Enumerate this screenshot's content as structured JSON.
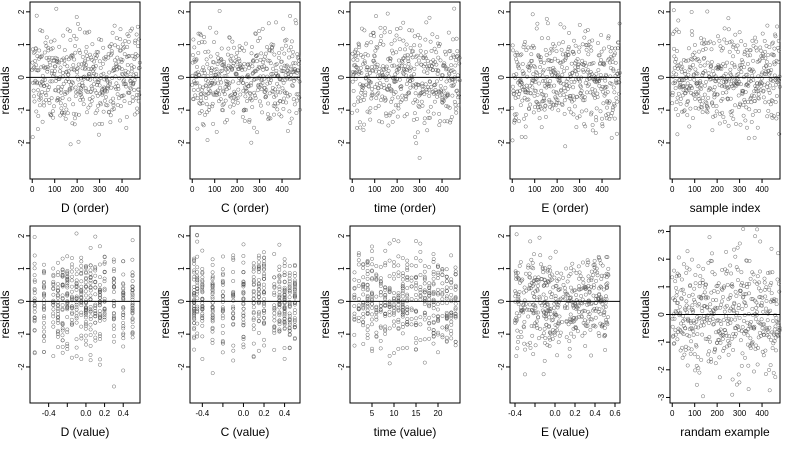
{
  "chart_data": [
    {
      "type": "scatter",
      "xlabel": "D (order)",
      "ylabel": "residuals",
      "xlim": [
        -10,
        480
      ],
      "ylim": [
        -3.1,
        2.3
      ],
      "xticks": [
        0,
        100,
        200,
        300,
        400
      ],
      "yticks": [
        2,
        1,
        0,
        -1,
        -2
      ],
      "hline": 0,
      "n": 480,
      "pattern": "index",
      "series": [
        {
          "y_range": [
            -2.7,
            2.1
          ]
        }
      ]
    },
    {
      "type": "scatter",
      "xlabel": "C (order)",
      "ylabel": "residuals",
      "xlim": [
        -10,
        480
      ],
      "ylim": [
        -3.1,
        2.3
      ],
      "xticks": [
        0,
        100,
        200,
        300,
        400
      ],
      "yticks": [
        2,
        1,
        0,
        -1,
        -2
      ],
      "hline": 0,
      "n": 480,
      "pattern": "index",
      "series": [
        {
          "y_range": [
            -2.7,
            2.1
          ]
        }
      ]
    },
    {
      "type": "scatter",
      "xlabel": "time (order)",
      "ylabel": "residuals",
      "xlim": [
        -10,
        480
      ],
      "ylim": [
        -3.1,
        2.3
      ],
      "xticks": [
        0,
        100,
        200,
        300,
        400
      ],
      "yticks": [
        2,
        1,
        0,
        -1,
        -2
      ],
      "hline": 0,
      "n": 480,
      "pattern": "index",
      "series": [
        {
          "y_range": [
            -2.7,
            2.1
          ]
        }
      ]
    },
    {
      "type": "scatter",
      "xlabel": "E (order)",
      "ylabel": "residuals",
      "xlim": [
        -10,
        480
      ],
      "ylim": [
        -3.1,
        2.3
      ],
      "xticks": [
        0,
        100,
        200,
        300,
        400
      ],
      "yticks": [
        2,
        1,
        0,
        -1,
        -2
      ],
      "hline": 0,
      "n": 480,
      "pattern": "index",
      "series": [
        {
          "y_range": [
            -2.7,
            2.1
          ]
        }
      ]
    },
    {
      "type": "scatter",
      "xlabel": "sample index",
      "ylabel": "residuals",
      "xlim": [
        -10,
        480
      ],
      "ylim": [
        -3.1,
        2.3
      ],
      "xticks": [
        0,
        100,
        200,
        300,
        400
      ],
      "yticks": [
        2,
        1,
        0,
        -1,
        -2
      ],
      "hline": 0,
      "n": 480,
      "pattern": "index",
      "series": [
        {
          "y_range": [
            -2.7,
            2.1
          ]
        }
      ]
    },
    {
      "type": "scatter",
      "xlabel": "D (value)",
      "ylabel": "residuals",
      "xlim": [
        -0.6,
        0.58
      ],
      "ylim": [
        -3.1,
        2.3
      ],
      "xticks": [
        -0.4,
        -0.2,
        0.0,
        0.2,
        0.4
      ],
      "xticklabels": [
        "-0.4",
        "",
        "0.0",
        "0.2",
        "0.4"
      ],
      "yticks": [
        2,
        1,
        0,
        -1,
        -2
      ],
      "hline": 0,
      "n": 480,
      "pattern": "columns",
      "x_levels": [
        -0.55,
        -0.45,
        -0.35,
        -0.3,
        -0.25,
        -0.2,
        -0.15,
        -0.1,
        -0.05,
        0.0,
        0.05,
        0.1,
        0.15,
        0.2,
        0.3,
        0.4,
        0.5
      ],
      "series": [
        {
          "y_range": [
            -2.7,
            2.1
          ]
        }
      ]
    },
    {
      "type": "scatter",
      "xlabel": "C (value)",
      "ylabel": "residuals",
      "xlim": [
        -0.52,
        0.55
      ],
      "ylim": [
        -3.1,
        2.3
      ],
      "xticks": [
        -0.4,
        -0.2,
        0.0,
        0.2,
        0.4
      ],
      "xticklabels": [
        "-0.4",
        "",
        "0.0",
        "0.2",
        "0.4"
      ],
      "yticks": [
        2,
        1,
        0,
        -1,
        -2
      ],
      "hline": 0,
      "n": 480,
      "pattern": "columns",
      "x_levels": [
        -0.48,
        -0.45,
        -0.4,
        -0.3,
        -0.2,
        -0.1,
        0.0,
        0.1,
        0.15,
        0.2,
        0.3,
        0.35,
        0.4,
        0.45,
        0.5
      ],
      "series": [
        {
          "y_range": [
            -2.7,
            2.1
          ]
        }
      ]
    },
    {
      "type": "scatter",
      "xlabel": "time (value)",
      "ylabel": "residuals",
      "xlim": [
        0,
        25
      ],
      "ylim": [
        -3.1,
        2.3
      ],
      "xticks": [
        5,
        10,
        15,
        20
      ],
      "yticks": [
        2,
        1,
        0,
        -1,
        -2
      ],
      "hline": 0,
      "n": 480,
      "pattern": "columns",
      "x_levels": [
        1,
        2,
        3,
        4,
        5,
        6,
        7,
        8,
        9,
        10,
        11,
        12,
        13,
        14,
        15,
        16,
        17,
        18,
        19,
        20,
        21,
        22,
        23,
        24
      ],
      "series": [
        {
          "y_range": [
            -2.7,
            2.1
          ]
        }
      ]
    },
    {
      "type": "scatter",
      "xlabel": "E (value)",
      "ylabel": "residuals",
      "xlim": [
        -0.45,
        0.65
      ],
      "ylim": [
        -3.1,
        2.3
      ],
      "xticks": [
        -0.4,
        -0.2,
        0.0,
        0.2,
        0.4,
        0.6
      ],
      "xticklabels": [
        "-0.4",
        "",
        "0.0",
        "0.2",
        "0.4",
        "0.6"
      ],
      "yticks": [
        2,
        1,
        0,
        -1,
        -2
      ],
      "hline": 0,
      "n": 480,
      "pattern": "continuous",
      "x_range": [
        -0.4,
        0.55
      ],
      "series": [
        {
          "y_range": [
            -2.7,
            2.1
          ]
        }
      ]
    },
    {
      "type": "scatter",
      "xlabel": "randam example",
      "ylabel": "residuals",
      "xlim": [
        -10,
        480
      ],
      "ylim": [
        -3.2,
        3.2
      ],
      "xticks": [
        0,
        100,
        200,
        300,
        400
      ],
      "yticks": [
        3,
        2,
        1,
        0,
        -1,
        -2,
        -3
      ],
      "hline": 0,
      "n": 480,
      "pattern": "index",
      "series": [
        {
          "y_range": [
            -3.1,
            3.1
          ]
        }
      ]
    }
  ]
}
